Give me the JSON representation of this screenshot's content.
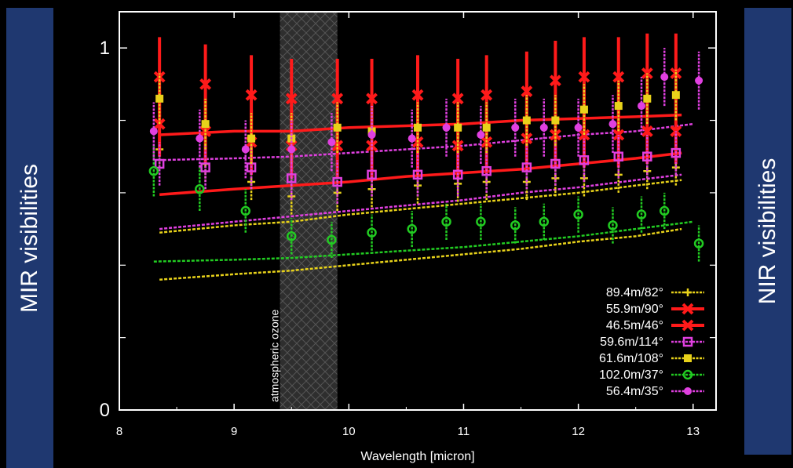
{
  "panels": {
    "left_label": "MIR visibilities",
    "right_label": "NIR visibilities",
    "color": "#1f3870"
  },
  "chart_data": {
    "type": "scatter",
    "xlabel": "Wavelength [micron]",
    "ylabel": "",
    "xlim": [
      8,
      13.2
    ],
    "ylim": [
      0,
      1.1
    ],
    "x_ticks": [
      8,
      9,
      10,
      11,
      12,
      13
    ],
    "y_ticks": [
      0,
      1
    ],
    "y_minor_ticks": [
      0.2,
      0.4,
      0.6,
      0.8
    ],
    "legend_position": "bottom-right",
    "annotation": {
      "text": "atmospheric ozone",
      "x_range": [
        9.4,
        9.9
      ]
    },
    "series": [
      {
        "name": "89.4m/82°",
        "color": "#e8d21a",
        "marker": "plus",
        "points": {
          "x": [
            8.35,
            8.75,
            9.15,
            9.5,
            9.9,
            10.2,
            10.6,
            10.95,
            11.2,
            11.55,
            11.8,
            12.05,
            12.35,
            12.6,
            12.85
          ],
          "y": [
            0.72,
            0.68,
            0.63,
            0.59,
            0.6,
            0.61,
            0.62,
            0.625,
            0.63,
            0.63,
            0.64,
            0.64,
            0.65,
            0.66,
            0.67
          ],
          "err": [
            0.05,
            0.05,
            0.05,
            0.05,
            0.05,
            0.05,
            0.05,
            0.05,
            0.05,
            0.05,
            0.05,
            0.05,
            0.05,
            0.05,
            0.05
          ]
        },
        "model": {
          "x": [
            8.35,
            9.0,
            9.5,
            10.0,
            10.5,
            11.0,
            11.5,
            12.0,
            12.5,
            12.9
          ],
          "y": [
            0.36,
            0.375,
            0.385,
            0.4,
            0.415,
            0.43,
            0.445,
            0.465,
            0.48,
            0.5
          ]
        }
      },
      {
        "name": "55.9m/90°",
        "color": "#ff1a1a",
        "marker": "cross",
        "points": {
          "x": [
            8.35,
            8.75,
            9.15,
            9.5,
            9.9,
            10.2,
            10.6,
            10.95,
            11.2,
            11.55,
            11.8,
            12.05,
            12.35,
            12.6,
            12.85
          ],
          "y": [
            0.92,
            0.9,
            0.87,
            0.86,
            0.86,
            0.86,
            0.87,
            0.86,
            0.87,
            0.88,
            0.91,
            0.92,
            0.92,
            0.93,
            0.93
          ],
          "err": [
            0.11,
            0.11,
            0.11,
            0.11,
            0.11,
            0.11,
            0.11,
            0.11,
            0.11,
            0.11,
            0.11,
            0.11,
            0.11,
            0.11,
            0.11
          ]
        },
        "model": {
          "x": [
            8.35,
            9.0,
            9.5,
            10.0,
            10.5,
            11.0,
            11.5,
            12.0,
            12.5,
            12.9
          ],
          "y": [
            0.76,
            0.77,
            0.77,
            0.78,
            0.785,
            0.79,
            0.8,
            0.805,
            0.81,
            0.815
          ]
        }
      },
      {
        "name": "46.5m/46°",
        "color": "#ff1a1a",
        "marker": "cross",
        "points": {
          "x": [
            8.35,
            8.75,
            9.15,
            9.5,
            9.9,
            10.2,
            10.6,
            10.95,
            11.2,
            11.55,
            11.8,
            12.05,
            12.35,
            12.6,
            12.85
          ],
          "y": [
            0.79,
            0.77,
            0.74,
            0.73,
            0.73,
            0.73,
            0.74,
            0.73,
            0.74,
            0.75,
            0.76,
            0.76,
            0.76,
            0.77,
            0.77
          ],
          "err": [
            0.09,
            0.09,
            0.09,
            0.09,
            0.09,
            0.09,
            0.09,
            0.09,
            0.09,
            0.09,
            0.09,
            0.09,
            0.09,
            0.09,
            0.09
          ]
        },
        "model": {
          "x": [
            8.35,
            9.0,
            9.5,
            10.0,
            10.5,
            11.0,
            11.5,
            12.0,
            12.5,
            12.9
          ],
          "y": [
            0.595,
            0.61,
            0.62,
            0.63,
            0.645,
            0.655,
            0.665,
            0.68,
            0.695,
            0.71
          ]
        }
      },
      {
        "name": "59.6m/114°",
        "color": "#e040e0",
        "marker": "square",
        "points": {
          "x": [
            8.35,
            8.75,
            9.15,
            9.5,
            9.9,
            10.2,
            10.6,
            10.95,
            11.2,
            11.55,
            11.8,
            12.05,
            12.35,
            12.6,
            12.85
          ],
          "y": [
            0.68,
            0.67,
            0.67,
            0.64,
            0.63,
            0.65,
            0.65,
            0.65,
            0.66,
            0.67,
            0.68,
            0.69,
            0.7,
            0.7,
            0.71
          ],
          "err": [
            0.06,
            0.06,
            0.06,
            0.06,
            0.06,
            0.06,
            0.06,
            0.06,
            0.06,
            0.06,
            0.06,
            0.06,
            0.06,
            0.06,
            0.06
          ]
        },
        "model": {
          "x": [
            8.35,
            9.0,
            9.5,
            10.0,
            10.5,
            11.0,
            11.5,
            12.0,
            12.5,
            12.9
          ],
          "y": [
            0.5,
            0.52,
            0.535,
            0.55,
            0.565,
            0.58,
            0.6,
            0.615,
            0.635,
            0.65
          ]
        }
      },
      {
        "name": "61.6m/108°",
        "color": "#e8d21a",
        "marker": "filled-square",
        "points": {
          "x": [
            8.35,
            8.75,
            9.15,
            9.5,
            9.9,
            10.2,
            10.6,
            10.95,
            11.2,
            11.55,
            11.8,
            12.05,
            12.35,
            12.6,
            12.85
          ],
          "y": [
            0.86,
            0.79,
            0.75,
            0.75,
            0.78,
            0.77,
            0.78,
            0.78,
            0.78,
            0.8,
            0.8,
            0.83,
            0.84,
            0.86,
            0.87
          ],
          "err": [
            0.07,
            0.07,
            0.07,
            0.07,
            0.07,
            0.07,
            0.07,
            0.07,
            0.07,
            0.07,
            0.07,
            0.07,
            0.07,
            0.07,
            0.07
          ]
        },
        "model": {
          "x": [
            8.35,
            9.0,
            9.5,
            10.0,
            10.5,
            11.0,
            11.5,
            12.0,
            12.5,
            12.9
          ],
          "y": [
            0.49,
            0.51,
            0.52,
            0.54,
            0.555,
            0.57,
            0.585,
            0.6,
            0.62,
            0.635
          ]
        }
      },
      {
        "name": "102.0m/37°",
        "color": "#22cc22",
        "marker": "circle",
        "points": {
          "x": [
            8.3,
            8.7,
            9.1,
            9.5,
            9.85,
            10.2,
            10.55,
            10.85,
            11.15,
            11.45,
            11.7,
            12.0,
            12.3,
            12.55,
            12.75,
            13.05
          ],
          "y": [
            0.66,
            0.61,
            0.55,
            0.48,
            0.47,
            0.49,
            0.5,
            0.52,
            0.52,
            0.51,
            0.52,
            0.54,
            0.51,
            0.54,
            0.55,
            0.46
          ],
          "err": [
            0.07,
            0.06,
            0.06,
            0.05,
            0.05,
            0.05,
            0.05,
            0.05,
            0.05,
            0.05,
            0.05,
            0.05,
            0.05,
            0.05,
            0.05,
            0.05
          ]
        },
        "model": {
          "x": [
            8.3,
            9.0,
            9.5,
            10.0,
            10.5,
            11.0,
            11.5,
            12.0,
            12.5,
            13.0
          ],
          "y": [
            0.41,
            0.415,
            0.42,
            0.43,
            0.44,
            0.45,
            0.465,
            0.48,
            0.5,
            0.52
          ]
        }
      },
      {
        "name": "56.4m/35°",
        "color": "#e040e0",
        "marker": "filled-circle",
        "points": {
          "x": [
            8.3,
            8.7,
            9.1,
            9.5,
            9.85,
            10.2,
            10.55,
            10.85,
            11.15,
            11.45,
            11.7,
            12.0,
            12.3,
            12.55,
            12.75,
            13.05
          ],
          "y": [
            0.77,
            0.75,
            0.72,
            0.72,
            0.74,
            0.76,
            0.75,
            0.78,
            0.76,
            0.78,
            0.78,
            0.78,
            0.79,
            0.84,
            0.92,
            0.91
          ],
          "err": [
            0.08,
            0.08,
            0.08,
            0.08,
            0.08,
            0.08,
            0.08,
            0.08,
            0.08,
            0.08,
            0.08,
            0.08,
            0.08,
            0.08,
            0.08,
            0.08
          ]
        },
        "model": {
          "x": [
            8.3,
            9.0,
            9.5,
            10.0,
            10.5,
            11.0,
            11.5,
            12.0,
            12.5,
            13.0
          ],
          "y": [
            0.69,
            0.695,
            0.7,
            0.71,
            0.72,
            0.73,
            0.745,
            0.76,
            0.77,
            0.79
          ]
        }
      }
    ]
  }
}
